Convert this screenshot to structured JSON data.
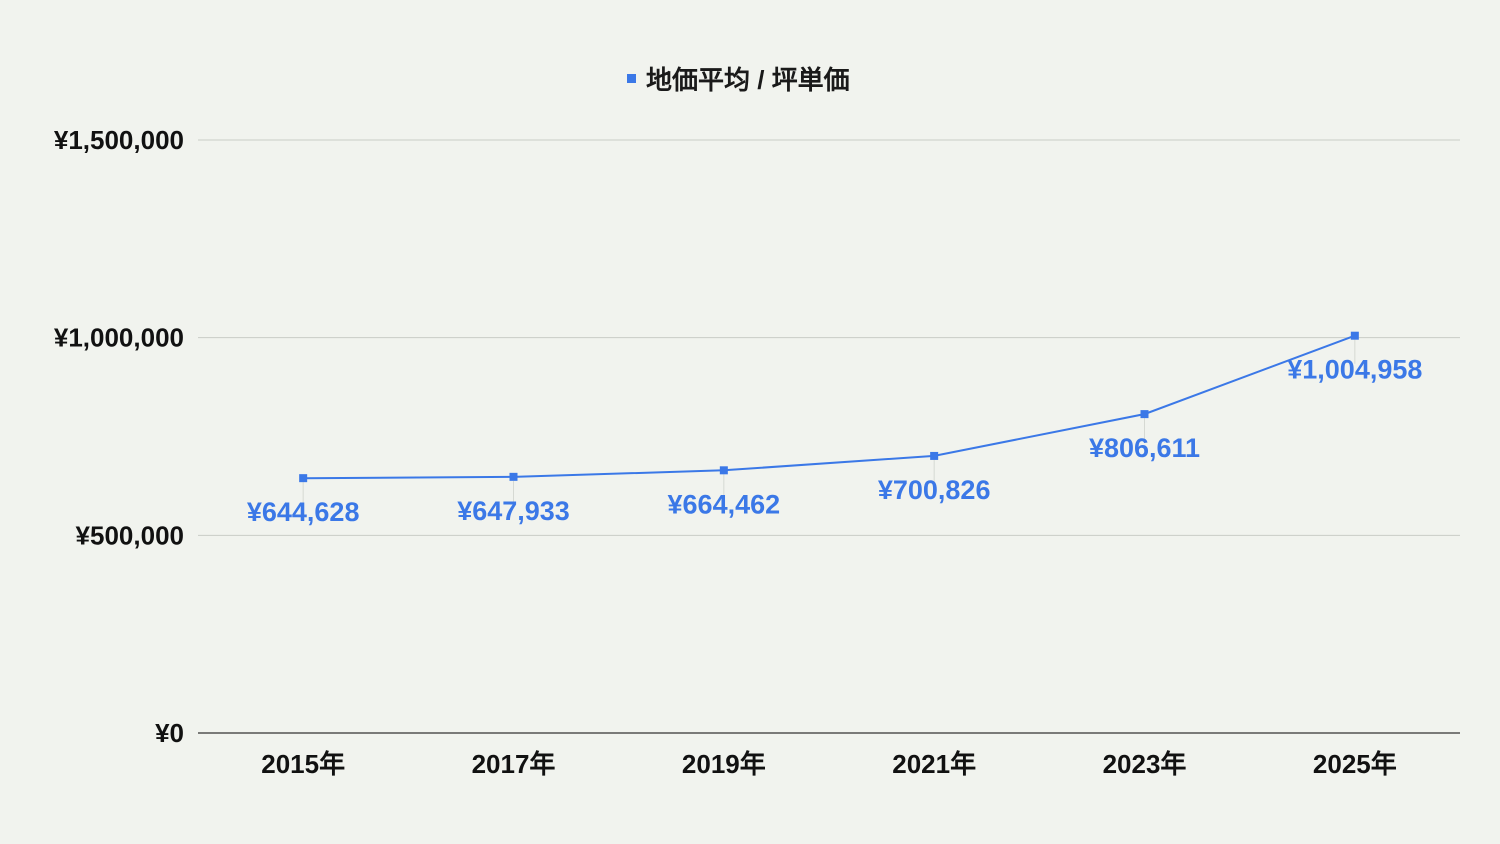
{
  "chart_data": {
    "type": "line",
    "categories": [
      "2015年",
      "2017年",
      "2019年",
      "2021年",
      "2023年",
      "2025年"
    ],
    "series": [
      {
        "name": "地価平均 / 坪単価",
        "values": [
          644628,
          647933,
          664462,
          700826,
          806611,
          1004958
        ],
        "data_labels": [
          "¥644,628",
          "¥647,933",
          "¥664,462",
          "¥700,826",
          "¥806,611",
          "¥1,004,958"
        ],
        "color": "#3b78e7"
      }
    ],
    "ylim": [
      0,
      1500000
    ],
    "yticks": [
      0,
      500000,
      1000000,
      1500000
    ],
    "ytick_labels": [
      "¥0",
      "¥500,000",
      "¥1,000,000",
      "¥1,500,000"
    ],
    "legend_position": "top-center",
    "grid": true,
    "colors": {
      "background": "#f1f3ee",
      "grid": "#c9ccc6",
      "baseline": "#333333",
      "series": "#3b78e7"
    }
  }
}
